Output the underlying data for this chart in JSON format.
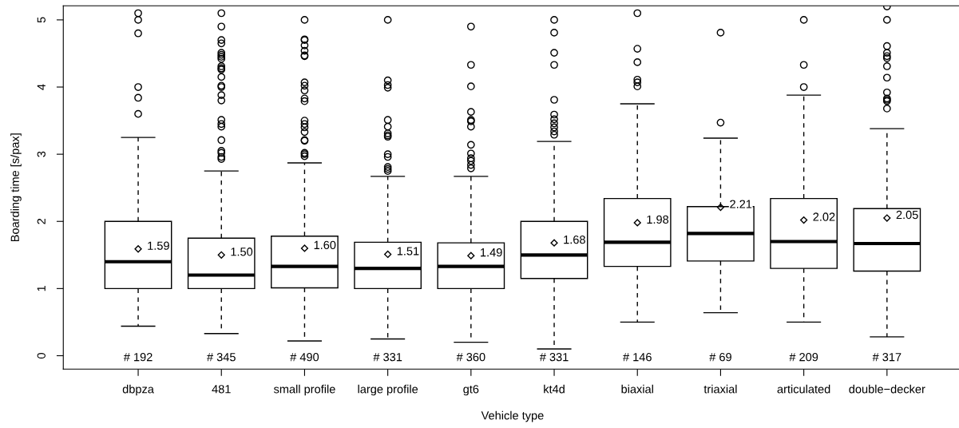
{
  "chart_data": {
    "type": "box",
    "xlabel": "Vehicle type",
    "ylabel": "Boarding time [s/pax]",
    "categories": [
      "dbpza",
      "481",
      "small profile",
      "large profile",
      "gt6",
      "kt4d",
      "biaxial",
      "triaxial",
      "articulated",
      "double−decker"
    ],
    "ylim": [
      -0.2,
      5.21
    ],
    "yticks": [
      0,
      1,
      2,
      3,
      4,
      5
    ],
    "grid": false,
    "boxes": [
      {
        "low": 0.44,
        "q1": 1.0,
        "median": 1.4,
        "q3": 2.0,
        "high": 3.25,
        "mean": 1.59,
        "outliers": [
          3.6,
          3.84,
          4.0,
          4.8,
          5.0,
          5.1
        ]
      },
      {
        "low": 0.33,
        "q1": 1.0,
        "median": 1.2,
        "q3": 1.75,
        "high": 2.75,
        "mean": 1.5,
        "outliers": [
          2.93,
          2.96,
          3.02,
          3.05,
          3.21,
          3.41,
          3.45,
          3.51,
          3.8,
          3.88,
          4.0,
          4.02,
          4.15,
          4.26,
          4.28,
          4.31,
          4.42,
          4.45,
          4.48,
          4.51,
          4.65,
          4.7,
          4.9,
          5.1
        ]
      },
      {
        "low": 0.22,
        "q1": 1.01,
        "median": 1.33,
        "q3": 1.78,
        "high": 2.87,
        "mean": 1.6,
        "outliers": [
          2.97,
          3.0,
          3.02,
          3.2,
          3.21,
          3.33,
          3.4,
          3.45,
          3.5,
          3.79,
          3.83,
          3.95,
          4.02,
          4.07,
          4.46,
          4.47,
          4.54,
          4.62,
          4.7,
          4.71,
          5.0
        ]
      },
      {
        "low": 0.25,
        "q1": 1.0,
        "median": 1.3,
        "q3": 1.69,
        "high": 2.67,
        "mean": 1.51,
        "outliers": [
          2.75,
          2.78,
          2.81,
          2.96,
          3.0,
          3.26,
          3.28,
          3.31,
          3.41,
          3.51,
          3.99,
          4.03,
          4.1,
          5.0
        ]
      },
      {
        "low": 0.2,
        "q1": 1.0,
        "median": 1.33,
        "q3": 1.68,
        "high": 2.67,
        "mean": 1.49,
        "outliers": [
          2.79,
          2.84,
          2.9,
          2.94,
          3.01,
          3.14,
          3.41,
          3.49,
          3.51,
          3.63,
          4.01,
          4.33,
          4.9
        ]
      },
      {
        "low": 0.1,
        "q1": 1.15,
        "median": 1.5,
        "q3": 2.0,
        "high": 3.19,
        "mean": 1.68,
        "outliers": [
          3.29,
          3.34,
          3.4,
          3.46,
          3.52,
          3.59,
          3.81,
          4.33,
          4.51,
          4.81,
          5.0
        ]
      },
      {
        "low": 0.5,
        "q1": 1.33,
        "median": 1.69,
        "q3": 2.34,
        "high": 3.75,
        "mean": 1.98,
        "outliers": [
          4.01,
          4.07,
          4.11,
          4.37,
          4.57,
          5.1
        ]
      },
      {
        "low": 0.64,
        "q1": 1.41,
        "median": 1.82,
        "q3": 2.22,
        "high": 3.24,
        "mean": 2.21,
        "outliers": [
          3.47,
          4.81
        ]
      },
      {
        "low": 0.5,
        "q1": 1.3,
        "median": 1.7,
        "q3": 2.34,
        "high": 3.88,
        "mean": 2.02,
        "outliers": [
          4.0,
          4.33,
          5.0
        ]
      },
      {
        "low": 0.28,
        "q1": 1.26,
        "median": 1.67,
        "q3": 2.19,
        "high": 3.38,
        "mean": 2.05,
        "outliers": [
          3.68,
          3.79,
          3.81,
          3.83,
          3.92,
          4.14,
          4.31,
          4.43,
          4.46,
          4.51,
          4.61,
          5.0,
          5.2
        ]
      }
    ],
    "annotations": [
      "1.59",
      "1.50",
      "1.60",
      "1.51",
      "1.49",
      "1.68",
      "1.98",
      "2.21",
      "2.02",
      "2.05",
      "# 192",
      "# 345",
      "# 490",
      "# 331",
      "# 360",
      "# 331",
      "# 146",
      "# 69",
      "# 209",
      "# 317"
    ]
  }
}
